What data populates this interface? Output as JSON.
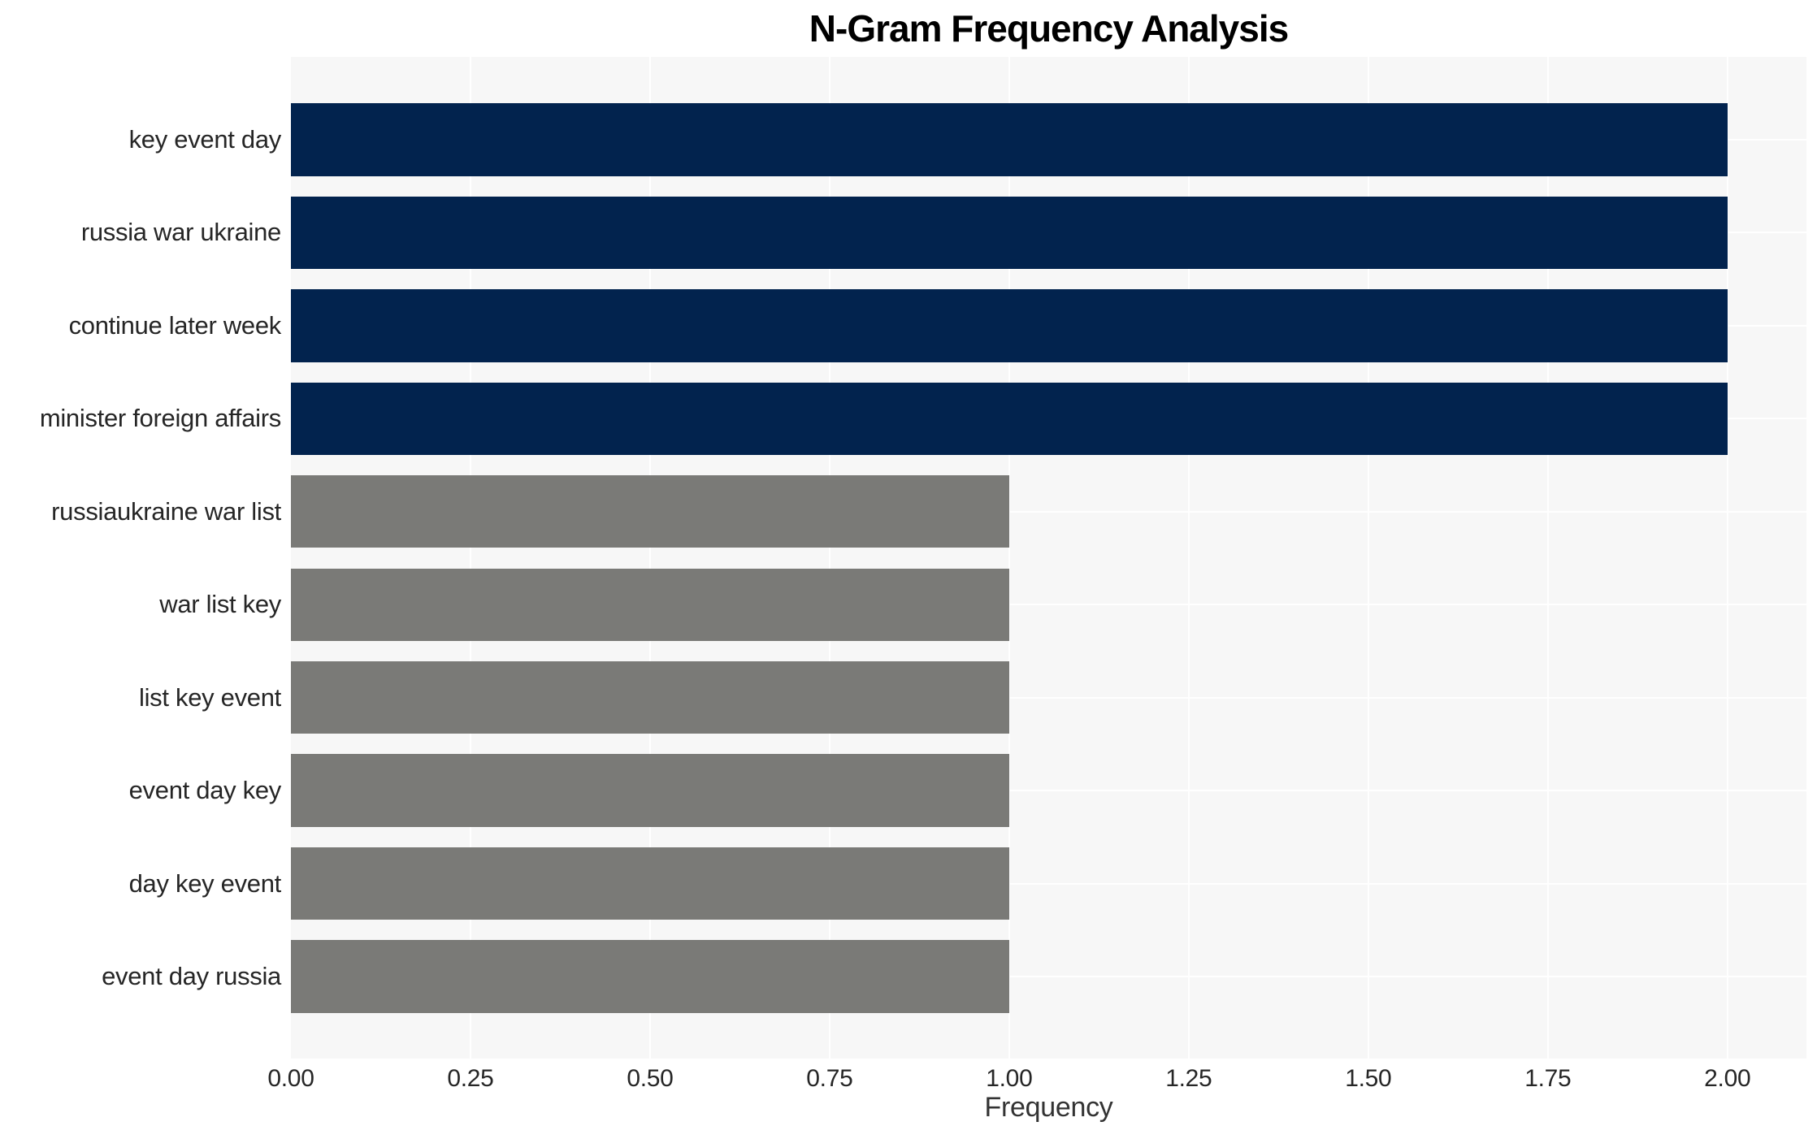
{
  "chart_data": {
    "type": "bar",
    "orientation": "horizontal",
    "title": "N-Gram Frequency Analysis",
    "xlabel": "Frequency",
    "ylabel": "",
    "categories": [
      "key event day",
      "russia war ukraine",
      "continue later week",
      "minister foreign affairs",
      "russiaukraine war list",
      "war list key",
      "list key event",
      "event day key",
      "day key event",
      "event day russia"
    ],
    "values": [
      2,
      2,
      2,
      2,
      1,
      1,
      1,
      1,
      1,
      1
    ],
    "bar_colors": [
      "#02234e",
      "#02234e",
      "#02234e",
      "#02234e",
      "#7a7a77",
      "#7a7a77",
      "#7a7a77",
      "#7a7a77",
      "#7a7a77",
      "#7a7a77"
    ],
    "xlim": [
      0,
      2.11
    ],
    "xticks": [
      0,
      0.25,
      0.5,
      0.75,
      1,
      1.25,
      1.5,
      1.75,
      2
    ],
    "xtick_labels": [
      "0.00",
      "0.25",
      "0.50",
      "0.75",
      "1.00",
      "1.25",
      "1.50",
      "1.75",
      "2.00"
    ],
    "grid": true,
    "legend": null,
    "colors": {
      "high_frequency_bar": "#02234e",
      "low_frequency_bar": "#7a7a77",
      "plot_background": "#f7f7f7",
      "gridline": "#ffffff",
      "title_text": "#000000",
      "label_text": "#262626"
    }
  }
}
